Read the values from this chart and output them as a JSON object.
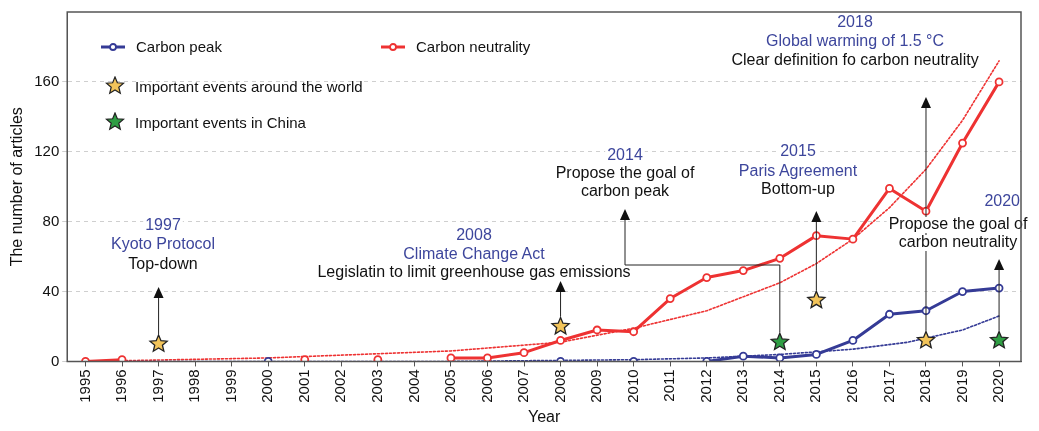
{
  "chart_data": {
    "type": "line",
    "xlabel": "Year",
    "ylabel": "The number of articles",
    "x": [
      1995,
      1996,
      1997,
      1998,
      1999,
      2000,
      2001,
      2002,
      2003,
      2004,
      2005,
      2006,
      2007,
      2008,
      2009,
      2010,
      2011,
      2012,
      2013,
      2014,
      2015,
      2016,
      2017,
      2018,
      2019,
      2020
    ],
    "series": [
      {
        "name": "Carbon peak",
        "color": "#353b96",
        "marker": "circle",
        "values": [
          null,
          null,
          null,
          null,
          null,
          0,
          null,
          null,
          null,
          null,
          null,
          null,
          null,
          0,
          null,
          0,
          null,
          0,
          3,
          2,
          4,
          12,
          27,
          29,
          40,
          42
        ]
      },
      {
        "name": "Carbon neutrality",
        "color": "#ee3232",
        "marker": "circle",
        "values": [
          0,
          1,
          null,
          null,
          null,
          null,
          1,
          null,
          1,
          null,
          2,
          2,
          5,
          12,
          18,
          17,
          36,
          48,
          52,
          59,
          72,
          70,
          99,
          86,
          125,
          160
        ]
      },
      {
        "type": "line",
        "color": "#353b96",
        "marker": "none",
        "line_style": "dotted",
        "x": [
          1995,
          2005,
          2010,
          2012,
          2014,
          2016,
          2017.5,
          2019,
          2020
        ],
        "values": [
          0,
          0,
          1,
          2,
          4,
          7,
          11,
          18,
          26
        ]
      },
      {
        "type": "line",
        "color": "#ee3232",
        "marker": "none",
        "line_style": "dotted",
        "x": [
          1995,
          2000,
          2005,
          2008,
          2010,
          2012,
          2014,
          2015,
          2016,
          2017,
          2018,
          2019,
          2020
        ],
        "values": [
          0,
          2,
          6,
          11,
          19,
          29,
          45,
          56,
          70,
          88,
          110,
          138,
          172
        ]
      },
      {
        "type": "scatter",
        "name": "Important events around the world",
        "color": "#f2c45a",
        "marker": "star",
        "x": [
          1997,
          2008,
          2015,
          2018
        ],
        "values": [
          10,
          20,
          35,
          12
        ]
      },
      {
        "type": "scatter",
        "name": "Important events in China",
        "color": "#2f9e44",
        "marker": "star",
        "x": [
          2014,
          2020
        ],
        "values": [
          11,
          12
        ]
      }
    ],
    "annotations": [
      "1997\nKyoto Protocol\nTop-down",
      "2008\nClimate Change Act\nLegislatin to limit greenhouse gas emissions",
      "2014\nPropose the goal of\ncarbon peak",
      "2015\nParis Agreement\nBottom-up",
      "2018\nGlobal warming of 1.5 °C\nClear definition fo carbon neutrality",
      "2020\nPropose the goal of\ncarbon neutrality"
    ],
    "xlim": [
      1994.5,
      2020.6
    ],
    "xticks": [
      1995,
      1996,
      1997,
      1998,
      1999,
      2000,
      2001,
      2002,
      2003,
      2004,
      2005,
      2006,
      2007,
      2008,
      2009,
      2010,
      2011,
      2012,
      2013,
      2014,
      2015,
      2016,
      2017,
      2018,
      2019,
      2020
    ],
    "ylim": [
      0,
      200
    ],
    "yticks": [
      0,
      40,
      80,
      120,
      160
    ],
    "grid": "y",
    "legend": "top left"
  }
}
